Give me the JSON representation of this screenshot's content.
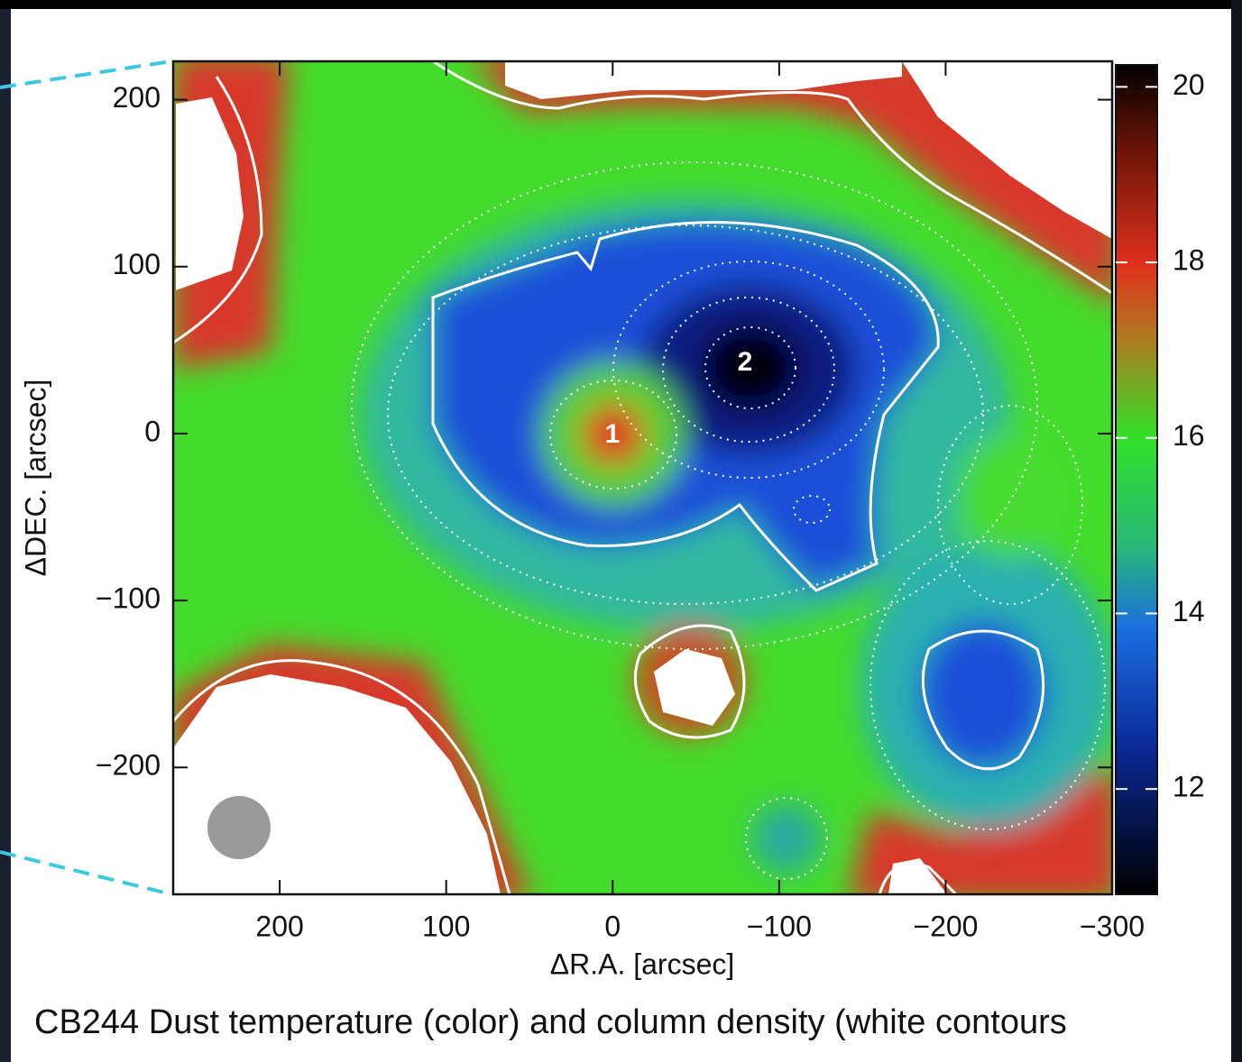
{
  "chart_data": {
    "type": "heatmap",
    "caption": "CB244 Dust temperature (color) and column density (white contours",
    "xlabel": "ΔR.A. [arcsec]",
    "ylabel": "ΔDEC. [arcsec]",
    "xlim": [
      264,
      -300
    ],
    "ylim": [
      -276,
      223
    ],
    "xticks": [
      200,
      100,
      0,
      {
        "value": -100,
        "label": "−100"
      },
      {
        "value": -200,
        "label": "−200"
      },
      {
        "value": -300,
        "label": "−300"
      }
    ],
    "yticks": [
      200,
      100,
      0,
      {
        "value": -100,
        "label": "−100"
      },
      {
        "value": -200,
        "label": "−200"
      }
    ],
    "colorbar": {
      "lim": [
        10.8,
        20.25
      ],
      "ticks": [
        12,
        14,
        16,
        18,
        20
      ]
    },
    "annotations": [
      "1",
      "2"
    ]
  }
}
